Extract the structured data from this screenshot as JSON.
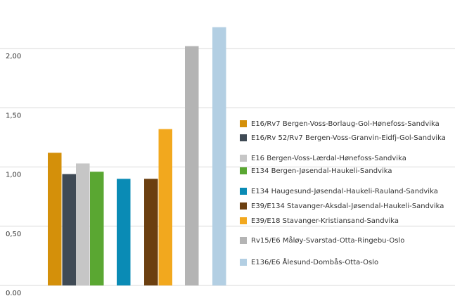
{
  "chart_data": {
    "type": "bar",
    "ylim": [
      0,
      2.4
    ],
    "yticks": [
      {
        "value": 0,
        "label": "0.00"
      },
      {
        "value": 0.5,
        "label": "0,50"
      },
      {
        "value": 1,
        "label": "1,00"
      },
      {
        "value": 1.5,
        "label": "1,50"
      },
      {
        "value": 2,
        "label": "2,00"
      }
    ],
    "grid": true,
    "legend": "right",
    "series": [
      {
        "name": "E16/Rv7 Bergen-Voss-Borlaug-Gol-Hønefoss-Sandvika",
        "color": "#d4900a",
        "values": [
          1.12
        ]
      },
      {
        "name": "E16/Rv 52/Rv7 Bergen-Voss-Granvin-Eidfj-Gol-Sandvika",
        "color": "#3f4a55",
        "values": [
          0.94
        ]
      },
      {
        "name": "E16 Bergen-Voss-Lærdal-Hønefoss-Sandvika",
        "color": "#c6c6c6",
        "values": [
          1.03
        ]
      },
      {
        "name": "E134 Bergen-Jøsendal-Haukeli-Sandvika",
        "color": "#5aa732",
        "values": [
          0.96
        ]
      },
      {
        "name": "E134 Haugesund-Jøsendal-Haukeli-Rauland-Sandvika",
        "color": "#0a8bb5",
        "values": [
          0.9
        ]
      },
      {
        "name": "E39/E134 Stavanger-Aksdal-Jøsendal-Haukeli-Sandvika",
        "color": "#6b3f10",
        "values": [
          0.9
        ]
      },
      {
        "name": "E39/E18 Stavanger-Kristiansand-Sandvika",
        "color": "#f2a81e",
        "values": [
          1.32
        ]
      },
      {
        "name": "Rv15/E6 Måløy-Svarstad-Otta-Ringebu-Oslo",
        "color": "#b4b4b4",
        "values": [
          2.02
        ]
      },
      {
        "name": "E136/E6 Ålesund-Dombås-Otta-Oslo",
        "color": "#b3cfe3",
        "values": [
          2.18
        ]
      }
    ]
  }
}
